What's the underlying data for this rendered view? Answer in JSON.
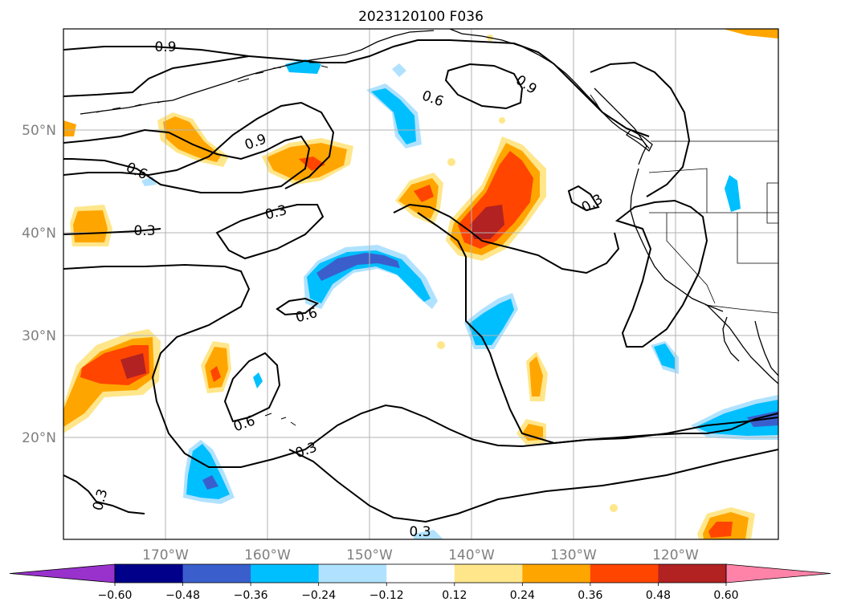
{
  "title": "2023120100 F036",
  "lat_labels": [
    "50°N",
    "40°N",
    "30°N",
    "20°N"
  ],
  "lon_labels": [
    "170°W",
    "160°W",
    "150°W",
    "140°W",
    "130°W",
    "120°W"
  ],
  "contour_labels": [
    "0.9",
    "0.9",
    "0.9",
    "0.6",
    "0.6",
    "0.6",
    "0.6",
    "0.3",
    "0.3",
    "0.3",
    "0.3",
    "0.3",
    "0.3"
  ],
  "colorbar": {
    "ticks": [
      "−0.60",
      "−0.48",
      "−0.36",
      "−0.24",
      "−0.12",
      "0.12",
      "0.24",
      "0.36",
      "0.48",
      "0.60"
    ],
    "colors": [
      "#9932cc",
      "#00008b",
      "#3a5fcd",
      "#00bfff",
      "#b0e2ff",
      "#ffffff",
      "#ffe68a",
      "#ffa500",
      "#ff4500",
      "#b22222",
      "#ff83a8"
    ]
  },
  "colors": {
    "light_blue": "#b0e2ff",
    "blue": "#00bfff",
    "royal": "#3a5fcd",
    "yellow": "#ffe68a",
    "orange": "#ffa500",
    "red": "#ff4500",
    "darkred": "#b22222"
  }
}
